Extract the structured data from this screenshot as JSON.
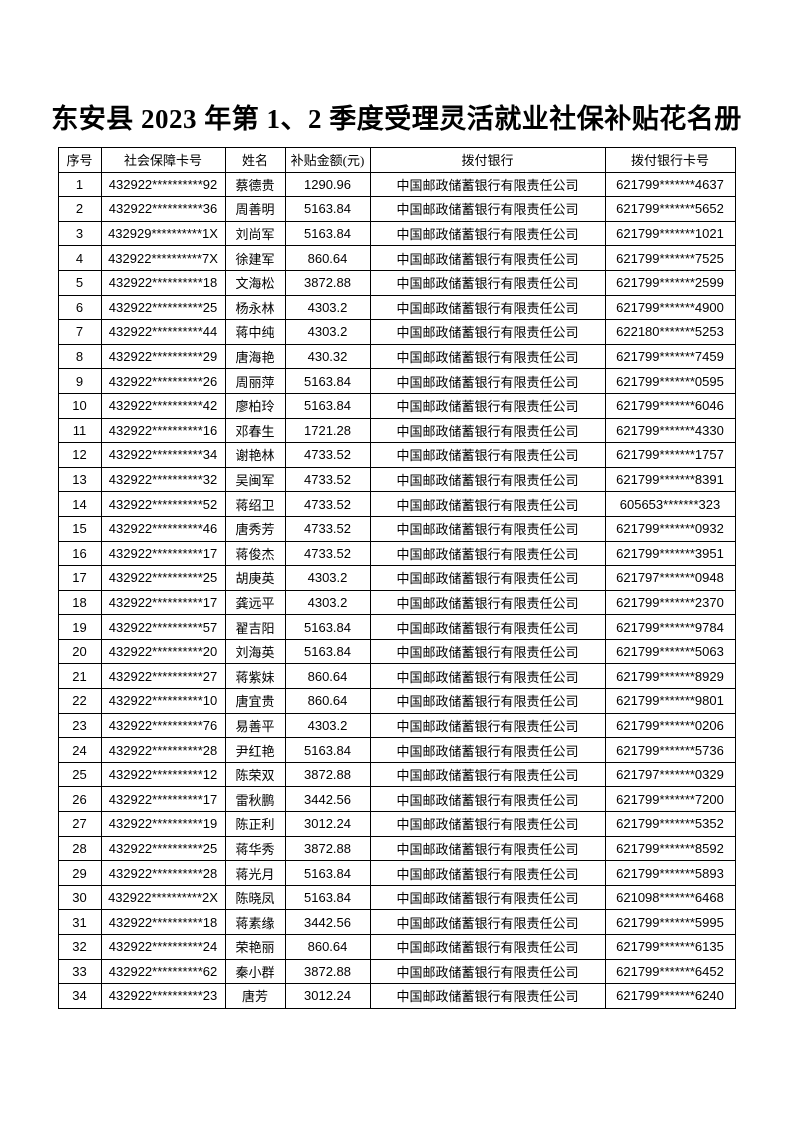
{
  "page": {
    "title": "东安县 2023 年第 1、2 季度受理灵活就业社保补贴花名册"
  },
  "table": {
    "headers": [
      "序号",
      "社会保障卡号",
      "姓名",
      "补贴金额(元)",
      "拨付银行",
      "拨付银行卡号"
    ],
    "rows": [
      [
        "1",
        "432922**********92",
        "蔡德贵",
        "1290.96",
        "中国邮政储蓄银行有限责任公司",
        "621799*******4637"
      ],
      [
        "2",
        "432922**********36",
        "周善明",
        "5163.84",
        "中国邮政储蓄银行有限责任公司",
        "621799*******5652"
      ],
      [
        "3",
        "432929**********1X",
        "刘尚军",
        "5163.84",
        "中国邮政储蓄银行有限责任公司",
        "621799*******1021"
      ],
      [
        "4",
        "432922**********7X",
        "徐建军",
        "860.64",
        "中国邮政储蓄银行有限责任公司",
        "621799*******7525"
      ],
      [
        "5",
        "432922**********18",
        "文海松",
        "3872.88",
        "中国邮政储蓄银行有限责任公司",
        "621799*******2599"
      ],
      [
        "6",
        "432922**********25",
        "杨永林",
        "4303.2",
        "中国邮政储蓄银行有限责任公司",
        "621799*******4900"
      ],
      [
        "7",
        "432922**********44",
        "蒋中纯",
        "4303.2",
        "中国邮政储蓄银行有限责任公司",
        "622180*******5253"
      ],
      [
        "8",
        "432922**********29",
        "唐海艳",
        "430.32",
        "中国邮政储蓄银行有限责任公司",
        "621799*******7459"
      ],
      [
        "9",
        "432922**********26",
        "周丽萍",
        "5163.84",
        "中国邮政储蓄银行有限责任公司",
        "621799*******0595"
      ],
      [
        "10",
        "432922**********42",
        "廖柏玲",
        "5163.84",
        "中国邮政储蓄银行有限责任公司",
        "621799*******6046"
      ],
      [
        "11",
        "432922**********16",
        "邓春生",
        "1721.28",
        "中国邮政储蓄银行有限责任公司",
        "621799*******4330"
      ],
      [
        "12",
        "432922**********34",
        "谢艳林",
        "4733.52",
        "中国邮政储蓄银行有限责任公司",
        "621799*******1757"
      ],
      [
        "13",
        "432922**********32",
        "吴闽军",
        "4733.52",
        "中国邮政储蓄银行有限责任公司",
        "621799*******8391"
      ],
      [
        "14",
        "432922**********52",
        "蒋绍卫",
        "4733.52",
        "中国邮政储蓄银行有限责任公司",
        "605653*******323"
      ],
      [
        "15",
        "432922**********46",
        "唐秀芳",
        "4733.52",
        "中国邮政储蓄银行有限责任公司",
        "621799*******0932"
      ],
      [
        "16",
        "432922**********17",
        "蒋俊杰",
        "4733.52",
        "中国邮政储蓄银行有限责任公司",
        "621799*******3951"
      ],
      [
        "17",
        "432922**********25",
        "胡庚英",
        "4303.2",
        "中国邮政储蓄银行有限责任公司",
        "621797*******0948"
      ],
      [
        "18",
        "432922**********17",
        "龚远平",
        "4303.2",
        "中国邮政储蓄银行有限责任公司",
        "621799*******2370"
      ],
      [
        "19",
        "432922**********57",
        "翟吉阳",
        "5163.84",
        "中国邮政储蓄银行有限责任公司",
        "621799*******9784"
      ],
      [
        "20",
        "432922**********20",
        "刘海英",
        "5163.84",
        "中国邮政储蓄银行有限责任公司",
        "621799*******5063"
      ],
      [
        "21",
        "432922**********27",
        "蒋紫妹",
        "860.64",
        "中国邮政储蓄银行有限责任公司",
        "621799*******8929"
      ],
      [
        "22",
        "432922**********10",
        "唐宜贵",
        "860.64",
        "中国邮政储蓄银行有限责任公司",
        "621799*******9801"
      ],
      [
        "23",
        "432922**********76",
        "易善平",
        "4303.2",
        "中国邮政储蓄银行有限责任公司",
        "621799*******0206"
      ],
      [
        "24",
        "432922**********28",
        "尹红艳",
        "5163.84",
        "中国邮政储蓄银行有限责任公司",
        "621799*******5736"
      ],
      [
        "25",
        "432922**********12",
        "陈荣双",
        "3872.88",
        "中国邮政储蓄银行有限责任公司",
        "621797*******0329"
      ],
      [
        "26",
        "432922**********17",
        "雷秋鹏",
        "3442.56",
        "中国邮政储蓄银行有限责任公司",
        "621799*******7200"
      ],
      [
        "27",
        "432922**********19",
        "陈正利",
        "3012.24",
        "中国邮政储蓄银行有限责任公司",
        "621799*******5352"
      ],
      [
        "28",
        "432922**********25",
        "蒋华秀",
        "3872.88",
        "中国邮政储蓄银行有限责任公司",
        "621799*******8592"
      ],
      [
        "29",
        "432922**********28",
        "蒋光月",
        "5163.84",
        "中国邮政储蓄银行有限责任公司",
        "621799*******5893"
      ],
      [
        "30",
        "432922**********2X",
        "陈晓凤",
        "5163.84",
        "中国邮政储蓄银行有限责任公司",
        "621098*******6468"
      ],
      [
        "31",
        "432922**********18",
        "蒋素缘",
        "3442.56",
        "中国邮政储蓄银行有限责任公司",
        "621799*******5995"
      ],
      [
        "32",
        "432922**********24",
        "荣艳丽",
        "860.64",
        "中国邮政储蓄银行有限责任公司",
        "621799*******6135"
      ],
      [
        "33",
        "432922**********62",
        "秦小群",
        "3872.88",
        "中国邮政储蓄银行有限责任公司",
        "621799*******6452"
      ],
      [
        "34",
        "432922**********23",
        "唐芳",
        "3012.24",
        "中国邮政储蓄银行有限责任公司",
        "621799*******6240"
      ]
    ]
  }
}
